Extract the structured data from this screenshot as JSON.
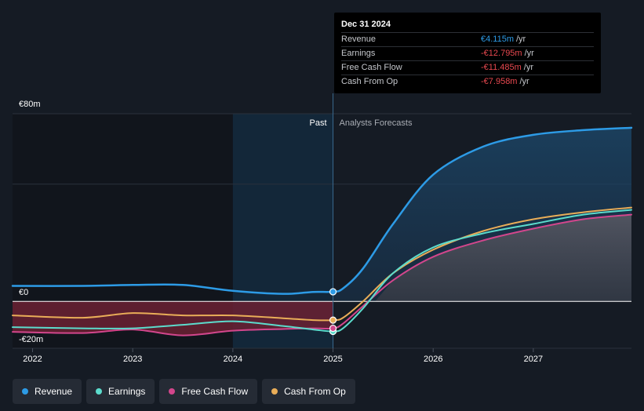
{
  "chart_data": {
    "type": "line",
    "title": "",
    "xlabel": "",
    "ylabel": "",
    "y_tick_labels": {
      "top": "€80m",
      "zero": "€0",
      "bottom": "-€20m"
    },
    "ylim": [
      -20,
      80
    ],
    "x_ticks": [
      "2022",
      "2023",
      "2024",
      "2025",
      "2026",
      "2027"
    ],
    "xlim": [
      2021.8,
      2027.98
    ],
    "divider_x": 2025.0,
    "past_highlight_start": 2024.0,
    "past_label": "Past",
    "forecast_label": "Analysts Forecasts",
    "grid": true,
    "legend_position": "bottom",
    "series": [
      {
        "name": "Revenue",
        "color": "#2d9be6",
        "points": [
          [
            2021.8,
            6.6
          ],
          [
            2022.5,
            6.6
          ],
          [
            2023.0,
            7.0
          ],
          [
            2023.5,
            7.0
          ],
          [
            2024.0,
            4.5
          ],
          [
            2024.5,
            3.2
          ],
          [
            2024.8,
            4.0
          ],
          [
            2025.0,
            4.1
          ],
          [
            2025.1,
            5.5
          ],
          [
            2025.3,
            14
          ],
          [
            2025.6,
            33
          ],
          [
            2026.0,
            54
          ],
          [
            2026.5,
            66
          ],
          [
            2027.0,
            71
          ],
          [
            2027.5,
            73
          ],
          [
            2027.98,
            74
          ]
        ]
      },
      {
        "name": "Earnings",
        "color": "#5cdbcc",
        "points": [
          [
            2021.8,
            -11.0
          ],
          [
            2022.5,
            -11.5
          ],
          [
            2023.0,
            -11.5
          ],
          [
            2023.5,
            -10.0
          ],
          [
            2024.0,
            -8.5
          ],
          [
            2024.5,
            -10.5
          ],
          [
            2024.8,
            -12.0
          ],
          [
            2025.0,
            -12.8
          ],
          [
            2025.1,
            -11.5
          ],
          [
            2025.3,
            -3
          ],
          [
            2025.6,
            12
          ],
          [
            2026.0,
            23
          ],
          [
            2026.5,
            29
          ],
          [
            2027.0,
            33
          ],
          [
            2027.5,
            37
          ],
          [
            2027.98,
            39
          ]
        ]
      },
      {
        "name": "Free Cash Flow",
        "color": "#d2468c",
        "points": [
          [
            2021.8,
            -13.0
          ],
          [
            2022.5,
            -13.5
          ],
          [
            2023.0,
            -12.0
          ],
          [
            2023.5,
            -14.5
          ],
          [
            2024.0,
            -12.5
          ],
          [
            2024.5,
            -11.8
          ],
          [
            2024.8,
            -11.5
          ],
          [
            2025.0,
            -11.5
          ],
          [
            2025.1,
            -9.5
          ],
          [
            2025.3,
            -2
          ],
          [
            2025.6,
            9
          ],
          [
            2026.0,
            19
          ],
          [
            2026.5,
            26
          ],
          [
            2027.0,
            31
          ],
          [
            2027.5,
            35
          ],
          [
            2027.98,
            37
          ]
        ]
      },
      {
        "name": "Cash From Op",
        "color": "#e9ad58",
        "points": [
          [
            2021.8,
            -6.0
          ],
          [
            2022.5,
            -7.0
          ],
          [
            2023.0,
            -5.0
          ],
          [
            2023.5,
            -6.0
          ],
          [
            2024.0,
            -6.0
          ],
          [
            2024.5,
            -7.2
          ],
          [
            2024.8,
            -8.0
          ],
          [
            2025.0,
            -8.0
          ],
          [
            2025.1,
            -7.0
          ],
          [
            2025.3,
            0
          ],
          [
            2025.6,
            12
          ],
          [
            2026.0,
            22
          ],
          [
            2026.5,
            30
          ],
          [
            2027.0,
            35
          ],
          [
            2027.5,
            38
          ],
          [
            2027.98,
            40
          ]
        ]
      }
    ]
  },
  "tooltip": {
    "date": "Dec 31 2024",
    "unit": "/yr",
    "rows": [
      {
        "label": "Revenue",
        "value": "€4.115m",
        "color": "#2d9be6"
      },
      {
        "label": "Earnings",
        "value": "-€12.795m",
        "color": "#e8484f"
      },
      {
        "label": "Free Cash Flow",
        "value": "-€11.485m",
        "color": "#e8484f"
      },
      {
        "label": "Cash From Op",
        "value": "-€7.958m",
        "color": "#e8484f"
      }
    ]
  },
  "colors": {
    "background": "#151b24",
    "past_shade": "#0f1115",
    "past_highlight": "#14293d",
    "negative_area": "#6b2133",
    "text": "#ffffff",
    "muted_text": "#a9adb4"
  }
}
